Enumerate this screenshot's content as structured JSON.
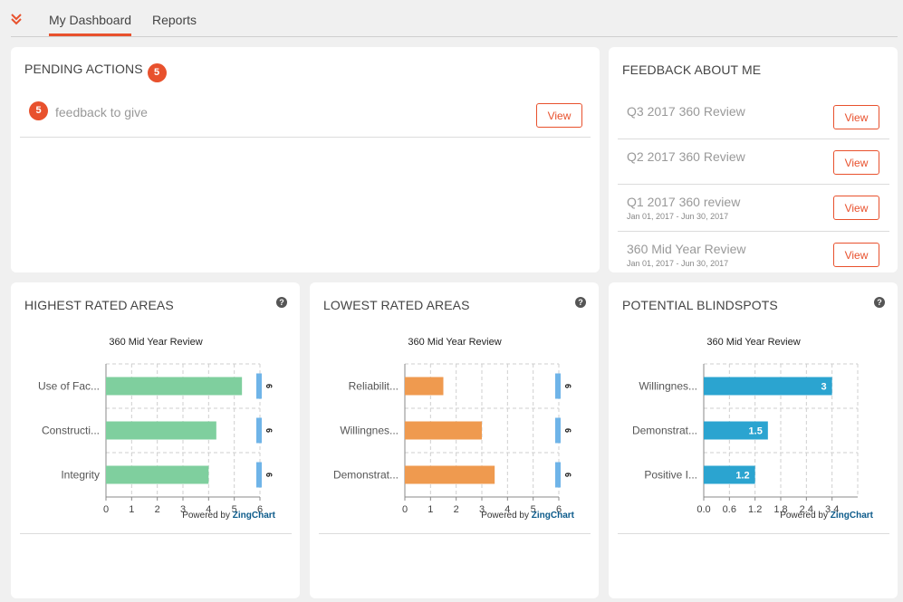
{
  "nav": {
    "tabs": [
      {
        "label": "My Dashboard"
      },
      {
        "label": "Reports"
      }
    ]
  },
  "pending": {
    "title": "PENDING ACTIONS",
    "count": "5",
    "items": [
      {
        "count": "5",
        "label": "feedback to give",
        "button": "View"
      }
    ]
  },
  "feedback": {
    "title": "FEEDBACK ABOUT ME",
    "items": [
      {
        "title": "Q3 2017 360 Review",
        "date": "",
        "button": "View"
      },
      {
        "title": "Q2 2017 360 Review",
        "date": "",
        "button": "View"
      },
      {
        "title": "Q1 2017 360 review",
        "date": "Jan 01, 2017 - Jun 30, 2017",
        "button": "View"
      },
      {
        "title": "360 Mid Year Review",
        "date": "Jan 01, 2017 - Jun 30, 2017",
        "button": "View"
      }
    ]
  },
  "powered_by": {
    "prefix": "Powered by",
    "brand": "ZingChart"
  },
  "help_glyph": "?",
  "colors": {
    "accent": "#e8512d",
    "green": "#7fcf9e",
    "orange": "#ef9a4f",
    "blue": "#2ba4d0",
    "marker": "#6fb4e8"
  },
  "chart_data": [
    {
      "card_title": "HIGHEST RATED AREAS",
      "type": "bar",
      "orientation": "horizontal",
      "title": "360 Mid Year Review",
      "categories": [
        "Use of Fac...",
        "Constructi...",
        "Integrity"
      ],
      "values": [
        5.3,
        4.3,
        4.0
      ],
      "marker_value": 6,
      "marker_label": "6",
      "xlim": [
        0,
        6
      ],
      "ticks": [
        "0",
        "1",
        "2",
        "3",
        "4",
        "5",
        "6"
      ],
      "color": "#7fcf9e",
      "show_value_labels": false
    },
    {
      "card_title": "LOWEST RATED AREAS",
      "type": "bar",
      "orientation": "horizontal",
      "title": "360 Mid Year Review",
      "categories": [
        "Reliabilit...",
        "Willingnes...",
        "Demonstrat..."
      ],
      "values": [
        1.5,
        3.0,
        3.5
      ],
      "marker_value": 6,
      "marker_label": "6",
      "xlim": [
        0,
        6
      ],
      "ticks": [
        "0",
        "1",
        "2",
        "3",
        "4",
        "5",
        "6"
      ],
      "color": "#ef9a4f",
      "show_value_labels": false
    },
    {
      "card_title": "POTENTIAL BLINDSPOTS",
      "type": "bar",
      "orientation": "horizontal",
      "title": "360 Mid Year Review",
      "categories": [
        "Willingnes...",
        "Demonstrat...",
        "Positive I..."
      ],
      "values": [
        3,
        1.5,
        1.2
      ],
      "value_labels": [
        "3",
        "1.5",
        "1.2"
      ],
      "xlim": [
        0,
        3.6
      ],
      "ticks": [
        "0.0",
        "0.6",
        "1.2",
        "1.8",
        "2.4",
        "3.4"
      ],
      "color": "#2ba4d0",
      "show_value_labels": true
    }
  ]
}
